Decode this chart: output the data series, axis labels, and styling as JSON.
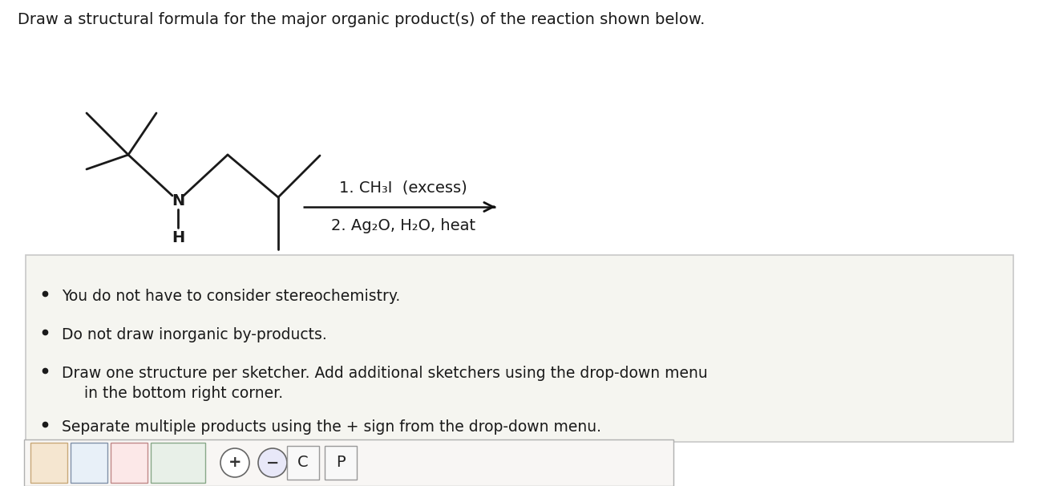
{
  "title": "Draw a structural formula for the major organic product(s) of the reaction shown below.",
  "title_fontsize": 14,
  "title_color": "#1a1a1a",
  "bg_color": "#ffffff",
  "reaction_step1": "1. CH₃I  (excess)",
  "reaction_step2": "2. Ag₂O, H₂O, heat",
  "reaction_fontsize": 14,
  "bullet_points": [
    "You do not have to consider stereochemistry.",
    "Do not draw inorganic by-products.",
    "Draw one structure per sketcher. Add additional sketchers using the drop-down menu",
    "in the bottom right corner.",
    "Separate multiple products using the + sign from the drop-down menu."
  ],
  "bullet_fontsize": 13.5,
  "box_bg_color": "#f5f5f0",
  "box_border_color": "#c8c8c8",
  "arrow_color": "#111111",
  "molecule_color": "#1a1a1a",
  "N_label": "N",
  "H_label": "H",
  "toolbar_bg": "#f0eeec",
  "toolbar_border": "#b0b0b0"
}
